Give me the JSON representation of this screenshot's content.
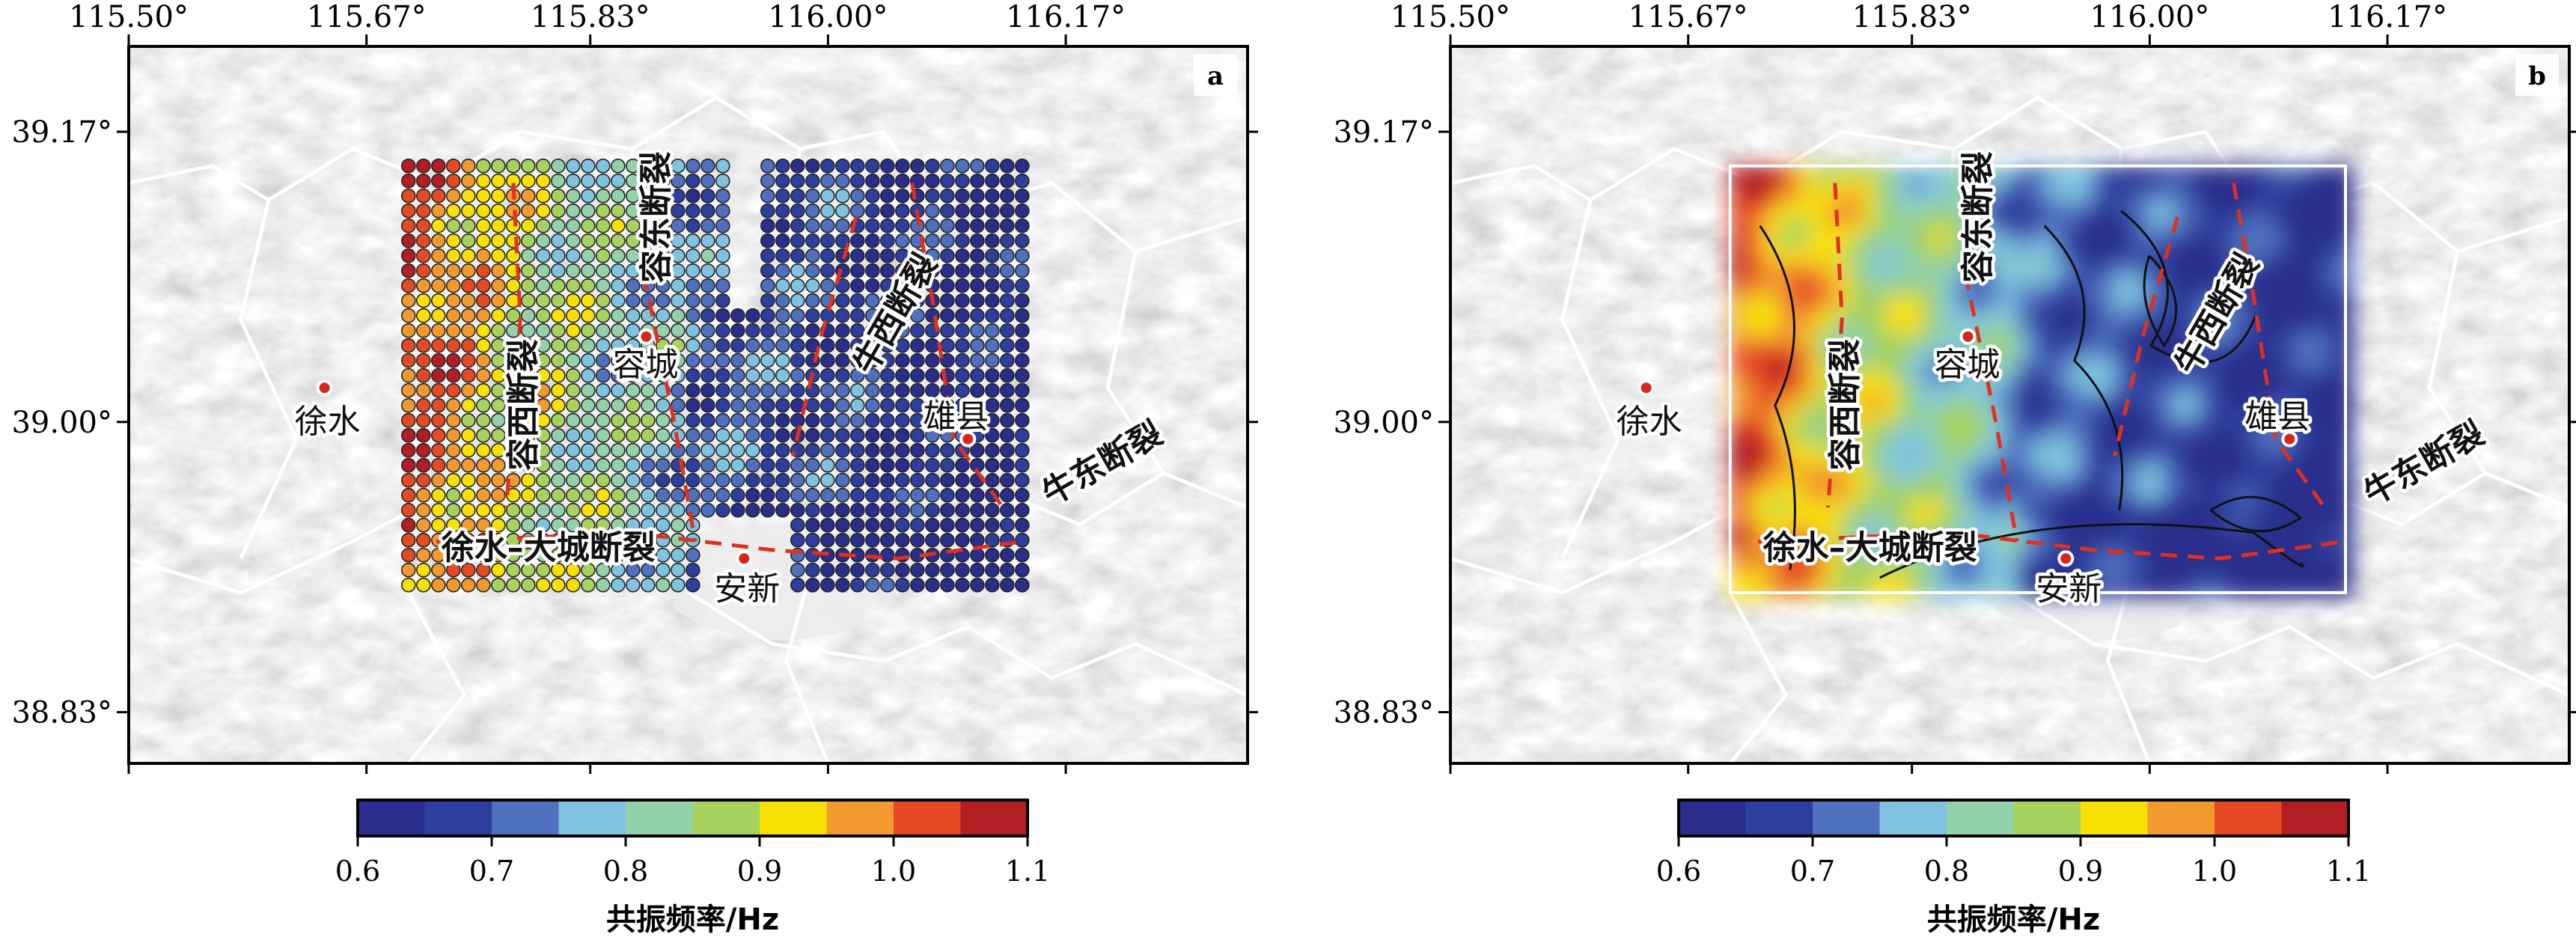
{
  "panels": [
    {
      "id": "a",
      "label": "a",
      "display": "points"
    },
    {
      "id": "b",
      "label": "b",
      "display": "grid"
    }
  ],
  "axes": {
    "x_ticks": [
      "115.50°",
      "115.67°",
      "115.83°",
      "116.00°",
      "116.17°"
    ],
    "y_ticks": [
      "39.17°",
      "39.00°",
      "38.83°"
    ]
  },
  "cities": [
    {
      "key": "xushui",
      "name": "徐水",
      "lon": 115.64,
      "lat": 39.02
    },
    {
      "key": "rongcheng",
      "name": "容城",
      "lon": 115.87,
      "lat": 39.05
    },
    {
      "key": "anxin",
      "name": "安新",
      "lon": 115.94,
      "lat": 38.92
    },
    {
      "key": "xiongxian",
      "name": "雄县",
      "lon": 116.1,
      "lat": 38.99
    }
  ],
  "faults": [
    {
      "key": "rongxi",
      "name": "容西断裂"
    },
    {
      "key": "rongdong",
      "name": "容东断裂"
    },
    {
      "key": "niuxi",
      "name": "牛西断裂"
    },
    {
      "key": "niudong",
      "name": "牛东断裂"
    },
    {
      "key": "xushui_dacheng",
      "name": "徐水–大城断裂"
    }
  ],
  "colorbar": {
    "colors": [
      "#2b2d8c",
      "#2d3f9e",
      "#4f6fbf",
      "#7fc3df",
      "#92d1a9",
      "#a6d25d",
      "#f8e100",
      "#f29a2e",
      "#e64a25",
      "#b31e24"
    ],
    "ticks": [
      "0.6",
      "0.7",
      "0.8",
      "0.9",
      "1.0",
      "1.1"
    ],
    "label": "共振频率/Hz",
    "min": 0.6,
    "max": 1.1
  },
  "chart_data": {
    "type": "map",
    "variable": "共振频率/Hz",
    "x_range_deg": [
      115.5,
      116.3
    ],
    "y_range_deg": [
      38.8,
      39.22
    ],
    "survey_extent_deg": {
      "lon": [
        115.7,
        116.14
      ],
      "lat": [
        38.9,
        39.15
      ]
    },
    "value_range_hz": [
      0.6,
      1.1
    ],
    "spatial_pattern": [
      {
        "area": "west strip lon 115.70–115.76",
        "range_hz": [
          0.9,
          1.1
        ]
      },
      {
        "area": "lon 115.76–115.90",
        "range_hz": [
          0.75,
          0.9
        ]
      },
      {
        "area": "east of lon 115.92",
        "range_hz": [
          0.6,
          0.75
        ]
      },
      {
        "area": "south of lat 38.93 near Anxin",
        "range_hz": [
          0.6,
          0.7
        ]
      }
    ]
  }
}
